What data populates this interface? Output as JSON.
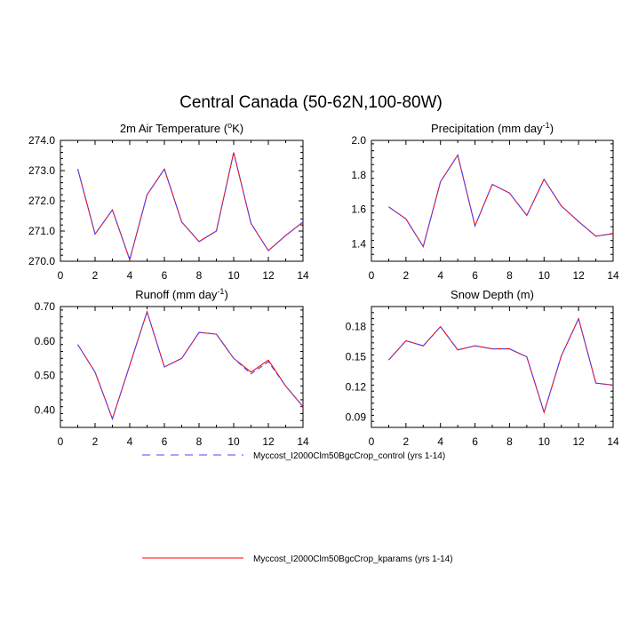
{
  "figure": {
    "title": "Central Canada (50-62N,100-80W)"
  },
  "colors": {
    "control": "#4a4aff",
    "kparams": "#ff0000",
    "axis": "#000000"
  },
  "legend": [
    {
      "label": "Myccost_I2000Clm50BgcCrop_control (yrs 1-14)",
      "style": "dashed",
      "color": "#4a4aff"
    },
    {
      "label": "Myccost_I2000Clm50BgcCrop_kparams (yrs 1-14)",
      "style": "solid",
      "color": "#ff0000"
    }
  ],
  "chart_data": [
    {
      "type": "line",
      "title": "2m Air Temperature",
      "title_superscript": "o",
      "title_suffix": "K",
      "title_format": "2m Air Temperature (^oK)",
      "xlim": [
        0,
        14
      ],
      "xticks": [
        "0",
        "2",
        "4",
        "6",
        "8",
        "10",
        "12",
        "14"
      ],
      "ylim": [
        270.0,
        274.0
      ],
      "yticks": [
        "270.0",
        "271.0",
        "272.0",
        "273.0",
        "274.0"
      ],
      "x": [
        1,
        2,
        3,
        4,
        5,
        6,
        7,
        8,
        9,
        10,
        11,
        12,
        13,
        14
      ],
      "series": [
        {
          "name": "Myccost_I2000Clm50BgcCrop_control (yrs 1-14)",
          "values": [
            273.05,
            270.9,
            271.7,
            270.05,
            272.2,
            273.05,
            271.3,
            270.65,
            271.0,
            273.6,
            271.25,
            270.35,
            270.85,
            271.3
          ]
        },
        {
          "name": "Myccost_I2000Clm50BgcCrop_kparams (yrs 1-14)",
          "values": [
            273.05,
            270.9,
            271.7,
            270.05,
            272.2,
            273.05,
            271.3,
            270.65,
            271.0,
            273.6,
            271.25,
            270.35,
            270.85,
            271.3
          ]
        }
      ]
    },
    {
      "type": "line",
      "title": "Precipitation (mm day",
      "title_superscript": "-1",
      "title_suffix": ")",
      "xlim": [
        0,
        14
      ],
      "xticks": [
        "0",
        "2",
        "4",
        "6",
        "8",
        "10",
        "12",
        "14"
      ],
      "ylim": [
        1.3,
        2.0
      ],
      "yticks": [
        "1.4",
        "1.6",
        "1.8",
        "2.0"
      ],
      "x": [
        1,
        2,
        3,
        4,
        5,
        6,
        7,
        8,
        9,
        10,
        11,
        12,
        13,
        14
      ],
      "series": [
        {
          "name": "Myccost_I2000Clm50BgcCrop_control (yrs 1-14)",
          "values": [
            1.615,
            1.545,
            1.385,
            1.76,
            1.915,
            1.505,
            1.745,
            1.695,
            1.565,
            1.775,
            1.62,
            1.53,
            1.445,
            1.46
          ]
        },
        {
          "name": "Myccost_I2000Clm50BgcCrop_kparams (yrs 1-14)",
          "values": [
            1.615,
            1.545,
            1.385,
            1.76,
            1.915,
            1.505,
            1.745,
            1.695,
            1.565,
            1.775,
            1.62,
            1.53,
            1.445,
            1.46
          ]
        }
      ]
    },
    {
      "type": "line",
      "title": "Runoff (mm day",
      "title_superscript": "-1",
      "title_suffix": ")",
      "xlim": [
        0,
        14
      ],
      "xticks": [
        "0",
        "2",
        "4",
        "6",
        "8",
        "10",
        "12",
        "14"
      ],
      "ylim": [
        0.35,
        0.7
      ],
      "yticks": [
        "0.40",
        "0.50",
        "0.60",
        "0.70"
      ],
      "x": [
        1,
        2,
        3,
        4,
        5,
        6,
        7,
        8,
        9,
        10,
        11,
        12,
        13,
        14
      ],
      "series": [
        {
          "name": "Myccost_I2000Clm50BgcCrop_control (yrs 1-14)",
          "values": [
            0.59,
            0.51,
            0.375,
            0.53,
            0.685,
            0.525,
            0.55,
            0.625,
            0.62,
            0.55,
            0.505,
            0.54,
            0.47,
            0.41
          ]
        },
        {
          "name": "Myccost_I2000Clm50BgcCrop_kparams (yrs 1-14)",
          "values": [
            0.59,
            0.51,
            0.375,
            0.53,
            0.685,
            0.525,
            0.55,
            0.625,
            0.62,
            0.55,
            0.51,
            0.545,
            0.47,
            0.41
          ]
        }
      ]
    },
    {
      "type": "line",
      "title": "Snow Depth (m)",
      "title_superscript": "",
      "title_suffix": "",
      "xlim": [
        0,
        14
      ],
      "xticks": [
        "0",
        "2",
        "4",
        "6",
        "8",
        "10",
        "12",
        "14"
      ],
      "ylim": [
        0.08,
        0.2
      ],
      "yticks": [
        "0.09",
        "0.12",
        "0.15",
        "0.18"
      ],
      "x": [
        1,
        2,
        3,
        4,
        5,
        6,
        7,
        8,
        9,
        10,
        11,
        12,
        13,
        14
      ],
      "series": [
        {
          "name": "Myccost_I2000Clm50BgcCrop_control (yrs 1-14)",
          "values": [
            0.147,
            0.166,
            0.161,
            0.18,
            0.157,
            0.161,
            0.158,
            0.158,
            0.15,
            0.095,
            0.151,
            0.188,
            0.124,
            0.122
          ]
        },
        {
          "name": "Myccost_I2000Clm50BgcCrop_kparams (yrs 1-14)",
          "values": [
            0.147,
            0.166,
            0.161,
            0.18,
            0.157,
            0.161,
            0.158,
            0.158,
            0.15,
            0.095,
            0.151,
            0.188,
            0.124,
            0.122
          ]
        }
      ]
    }
  ]
}
